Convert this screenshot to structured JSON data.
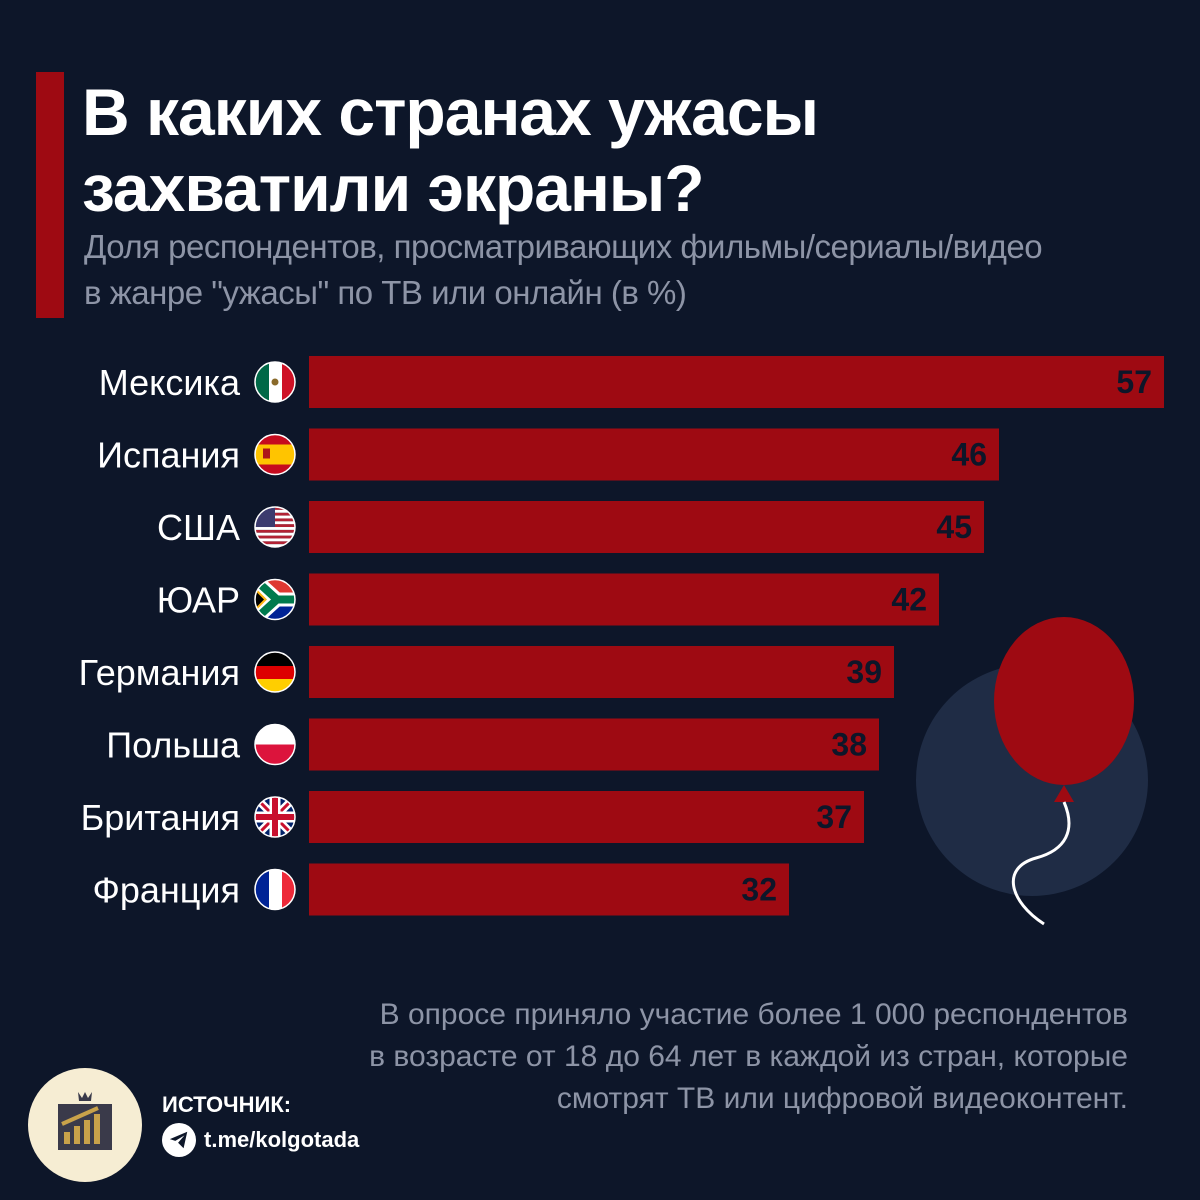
{
  "header": {
    "title_line1": "В каких странах ужасы",
    "title_line2": "захватили экраны?",
    "subtitle_line1": "Доля респондентов, просматривающих фильмы/сериалы/видео",
    "subtitle_line2": "в жанре \"ужасы\" по ТВ или онлайн (в %)"
  },
  "chart_data": {
    "type": "bar",
    "orientation": "horizontal",
    "categories": [
      "Мексика",
      "Испания",
      "США",
      "ЮАР",
      "Германия",
      "Польша",
      "Британия",
      "Франция"
    ],
    "values": [
      57,
      46,
      45,
      42,
      39,
      38,
      37,
      32
    ],
    "flags": [
      "mexico-flag-icon",
      "spain-flag-icon",
      "usa-flag-icon",
      "south-africa-flag-icon",
      "germany-flag-icon",
      "poland-flag-icon",
      "uk-flag-icon",
      "france-flag-icon"
    ],
    "bar_color": "#9e0a12",
    "value_label_color": "#0d1629",
    "xlim": [
      0,
      57
    ],
    "grid": false
  },
  "footnote": {
    "line1": "В опросе приняло участие более 1 000 респондентов",
    "line2": "в возрасте от 18 до 64 лет в каждой из стран, которые",
    "line3": "смотрят ТВ или цифровой видеоконтент."
  },
  "source": {
    "label": "ИСТОЧНИК:",
    "link": "t.me/kolgotada",
    "icon": "telegram-icon",
    "logo_icon": "chart-logo-icon"
  },
  "colors": {
    "background": "#0d1629",
    "accent": "#9e0a12",
    "muted_text": "#8d94a6",
    "balloon": "#9e0a12",
    "balloon_backdrop": "#1f2c45"
  }
}
